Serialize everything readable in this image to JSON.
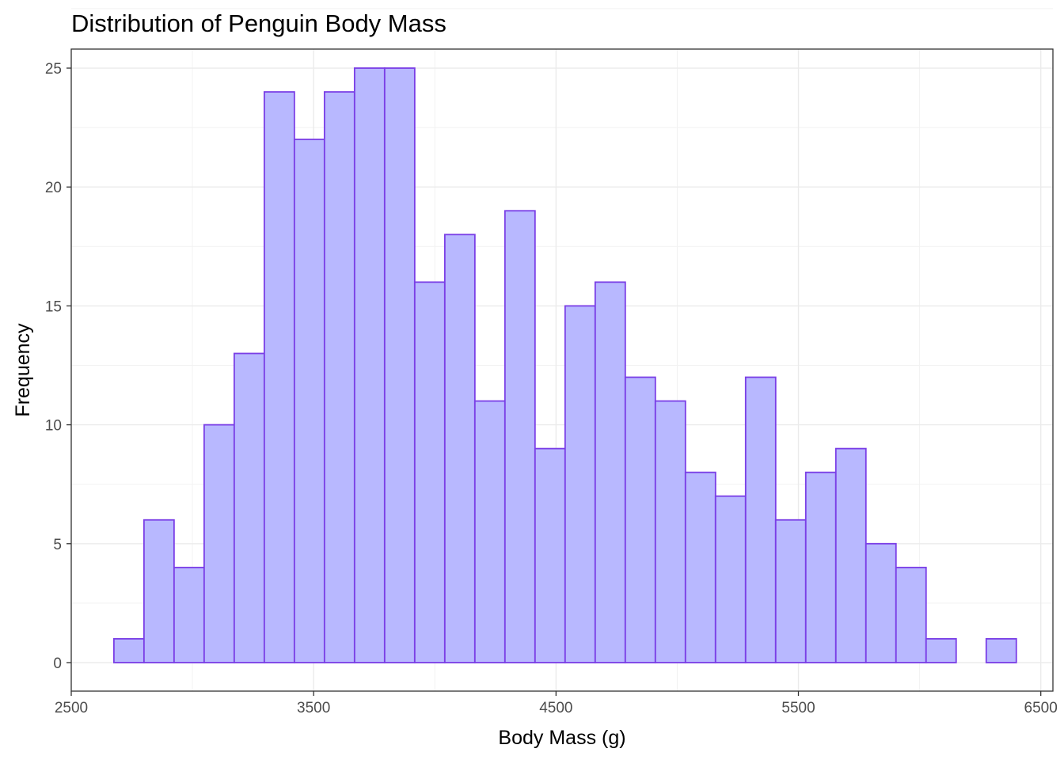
{
  "chart_data": {
    "type": "bar",
    "subtype": "histogram",
    "title": "Distribution of Penguin Body Mass",
    "xlabel": "Body Mass (g)",
    "ylabel": "Frequency",
    "xlim": [
      2500,
      6550
    ],
    "ylim": [
      -1.2,
      25.8
    ],
    "x_ticks": [
      2500,
      3500,
      4500,
      5500,
      6500
    ],
    "y_ticks": [
      0,
      5,
      10,
      15,
      20,
      25
    ],
    "bin_width": 124.1,
    "bin_start": 2676,
    "counts": [
      1,
      6,
      4,
      10,
      13,
      24,
      22,
      24,
      25,
      25,
      16,
      18,
      11,
      19,
      9,
      15,
      16,
      12,
      11,
      8,
      7,
      12,
      6,
      8,
      9,
      5,
      4,
      1,
      0,
      1
    ],
    "fill_color": "#b8b8ff",
    "outline_color": "#7a3ee6",
    "grid": true,
    "legend": "none"
  }
}
